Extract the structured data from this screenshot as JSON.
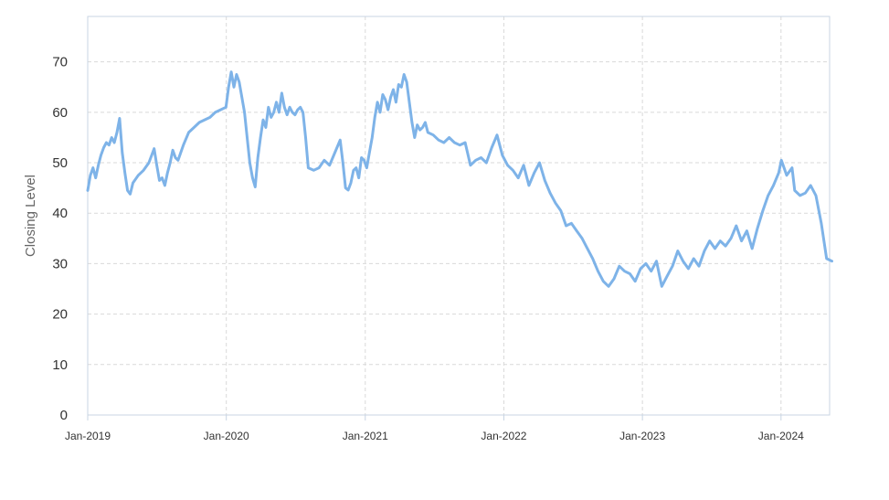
{
  "chart_data": {
    "type": "line",
    "title": "",
    "xlabel": "",
    "ylabel": "Closing Level",
    "ylim": [
      0,
      79
    ],
    "xlim": [
      "2019-01",
      "2024-05"
    ],
    "grid": true,
    "grid_style": "dashed",
    "legend": "none",
    "y_ticks": [
      0,
      10,
      20,
      30,
      40,
      50,
      60,
      70
    ],
    "x_ticks": [
      "Jan-2019",
      "Jan-2020",
      "Jan-2021",
      "Jan-2022",
      "Jan-2023",
      "Jan-2024"
    ],
    "colors": {
      "line": "#7eb3e8",
      "grid": "#d9d9d9",
      "frame": "#c8d4e3",
      "text": "#333333"
    },
    "series": [
      {
        "points": [
          [
            "2019-01-01",
            44.5
          ],
          [
            "2019-01-08",
            47.5
          ],
          [
            "2019-01-15",
            49
          ],
          [
            "2019-01-22",
            47
          ],
          [
            "2019-01-29",
            49.5
          ],
          [
            "2019-02-05",
            51.5
          ],
          [
            "2019-02-12",
            53
          ],
          [
            "2019-02-19",
            54
          ],
          [
            "2019-02-26",
            53.5
          ],
          [
            "2019-03-05",
            55
          ],
          [
            "2019-03-12",
            54
          ],
          [
            "2019-03-19",
            56
          ],
          [
            "2019-03-26",
            58.8
          ],
          [
            "2019-04-02",
            52
          ],
          [
            "2019-04-09",
            48
          ],
          [
            "2019-04-16",
            44.5
          ],
          [
            "2019-04-23",
            43.8
          ],
          [
            "2019-04-30",
            46
          ],
          [
            "2019-05-14",
            47.5
          ],
          [
            "2019-05-28",
            48.5
          ],
          [
            "2019-06-11",
            50
          ],
          [
            "2019-06-25",
            52.8
          ],
          [
            "2019-07-02",
            49.5
          ],
          [
            "2019-07-09",
            46.5
          ],
          [
            "2019-07-16",
            47
          ],
          [
            "2019-07-23",
            45.5
          ],
          [
            "2019-07-30",
            48
          ],
          [
            "2019-08-06",
            50
          ],
          [
            "2019-08-13",
            52.5
          ],
          [
            "2019-08-20",
            51
          ],
          [
            "2019-08-27",
            50.5
          ],
          [
            "2019-09-03",
            52
          ],
          [
            "2019-09-10",
            53.5
          ],
          [
            "2019-09-24",
            56
          ],
          [
            "2019-10-08",
            57
          ],
          [
            "2019-10-22",
            58
          ],
          [
            "2019-11-05",
            58.5
          ],
          [
            "2019-11-19",
            59
          ],
          [
            "2019-12-03",
            60
          ],
          [
            "2019-12-17",
            60.5
          ],
          [
            "2019-12-31",
            61
          ],
          [
            "2020-01-07",
            65
          ],
          [
            "2020-01-14",
            68
          ],
          [
            "2020-01-21",
            65
          ],
          [
            "2020-01-28",
            67.5
          ],
          [
            "2020-02-04",
            66
          ],
          [
            "2020-02-11",
            63
          ],
          [
            "2020-02-18",
            60
          ],
          [
            "2020-02-25",
            55
          ],
          [
            "2020-03-03",
            50
          ],
          [
            "2020-03-10",
            47
          ],
          [
            "2020-03-17",
            45.2
          ],
          [
            "2020-03-24",
            51
          ],
          [
            "2020-03-31",
            55
          ],
          [
            "2020-04-07",
            58.5
          ],
          [
            "2020-04-14",
            57
          ],
          [
            "2020-04-21",
            61
          ],
          [
            "2020-04-28",
            59
          ],
          [
            "2020-05-05",
            60
          ],
          [
            "2020-05-12",
            62
          ],
          [
            "2020-05-19",
            60
          ],
          [
            "2020-05-26",
            63.8
          ],
          [
            "2020-06-02",
            61
          ],
          [
            "2020-06-09",
            59.5
          ],
          [
            "2020-06-16",
            61
          ],
          [
            "2020-06-23",
            60
          ],
          [
            "2020-06-30",
            59.5
          ],
          [
            "2020-07-07",
            60.5
          ],
          [
            "2020-07-14",
            61
          ],
          [
            "2020-07-21",
            60
          ],
          [
            "2020-07-28",
            55
          ],
          [
            "2020-08-04",
            49
          ],
          [
            "2020-08-18",
            48.5
          ],
          [
            "2020-09-01",
            49
          ],
          [
            "2020-09-15",
            50.5
          ],
          [
            "2020-09-29",
            49.5
          ],
          [
            "2020-10-13",
            52
          ],
          [
            "2020-10-27",
            54.5
          ],
          [
            "2020-11-03",
            50
          ],
          [
            "2020-11-10",
            45
          ],
          [
            "2020-11-17",
            44.6
          ],
          [
            "2020-11-24",
            46
          ],
          [
            "2020-12-01",
            48.5
          ],
          [
            "2020-12-08",
            49
          ],
          [
            "2020-12-15",
            47
          ],
          [
            "2020-12-22",
            51
          ],
          [
            "2020-12-29",
            50.5
          ],
          [
            "2021-01-05",
            49
          ],
          [
            "2021-01-12",
            52
          ],
          [
            "2021-01-19",
            55
          ],
          [
            "2021-01-26",
            59
          ],
          [
            "2021-02-02",
            62
          ],
          [
            "2021-02-09",
            60
          ],
          [
            "2021-02-16",
            63.5
          ],
          [
            "2021-02-23",
            62.5
          ],
          [
            "2021-03-02",
            60.5
          ],
          [
            "2021-03-09",
            63
          ],
          [
            "2021-03-16",
            64.5
          ],
          [
            "2021-03-23",
            62
          ],
          [
            "2021-03-30",
            65.5
          ],
          [
            "2021-04-06",
            65
          ],
          [
            "2021-04-13",
            67.5
          ],
          [
            "2021-04-20",
            66
          ],
          [
            "2021-04-27",
            62
          ],
          [
            "2021-05-04",
            58
          ],
          [
            "2021-05-11",
            55
          ],
          [
            "2021-05-18",
            57.5
          ],
          [
            "2021-05-25",
            56.5
          ],
          [
            "2021-06-01",
            57
          ],
          [
            "2021-06-08",
            58
          ],
          [
            "2021-06-15",
            56
          ],
          [
            "2021-06-29",
            55.5
          ],
          [
            "2021-07-13",
            54.5
          ],
          [
            "2021-07-27",
            54
          ],
          [
            "2021-08-10",
            55
          ],
          [
            "2021-08-24",
            54
          ],
          [
            "2021-09-07",
            53.5
          ],
          [
            "2021-09-21",
            54
          ],
          [
            "2021-10-05",
            49.5
          ],
          [
            "2021-10-19",
            50.5
          ],
          [
            "2021-11-02",
            51
          ],
          [
            "2021-11-16",
            50
          ],
          [
            "2021-11-30",
            53
          ],
          [
            "2021-12-14",
            55.5
          ],
          [
            "2021-12-28",
            51.5
          ],
          [
            "2022-01-11",
            49.5
          ],
          [
            "2022-01-25",
            48.5
          ],
          [
            "2022-02-08",
            47
          ],
          [
            "2022-02-22",
            49.5
          ],
          [
            "2022-03-08",
            45.5
          ],
          [
            "2022-03-22",
            48
          ],
          [
            "2022-04-05",
            50
          ],
          [
            "2022-04-19",
            46.5
          ],
          [
            "2022-05-03",
            44
          ],
          [
            "2022-05-17",
            42
          ],
          [
            "2022-05-31",
            40.5
          ],
          [
            "2022-06-14",
            37.5
          ],
          [
            "2022-06-28",
            38
          ],
          [
            "2022-07-12",
            36.5
          ],
          [
            "2022-07-26",
            35
          ],
          [
            "2022-08-09",
            33
          ],
          [
            "2022-08-23",
            31
          ],
          [
            "2022-09-06",
            28.5
          ],
          [
            "2022-09-20",
            26.5
          ],
          [
            "2022-10-04",
            25.5
          ],
          [
            "2022-10-18",
            27
          ],
          [
            "2022-11-01",
            29.5
          ],
          [
            "2022-11-15",
            28.5
          ],
          [
            "2022-11-29",
            28
          ],
          [
            "2022-12-13",
            26.5
          ],
          [
            "2022-12-27",
            29
          ],
          [
            "2023-01-10",
            30
          ],
          [
            "2023-01-24",
            28.5
          ],
          [
            "2023-02-07",
            30.5
          ],
          [
            "2023-02-21",
            25.5
          ],
          [
            "2023-03-07",
            27.5
          ],
          [
            "2023-03-21",
            29.5
          ],
          [
            "2023-04-04",
            32.5
          ],
          [
            "2023-04-18",
            30.5
          ],
          [
            "2023-05-02",
            29
          ],
          [
            "2023-05-16",
            31
          ],
          [
            "2023-05-30",
            29.5
          ],
          [
            "2023-06-13",
            32.5
          ],
          [
            "2023-06-27",
            34.5
          ],
          [
            "2023-07-11",
            33
          ],
          [
            "2023-07-25",
            34.5
          ],
          [
            "2023-08-08",
            33.5
          ],
          [
            "2023-08-22",
            35
          ],
          [
            "2023-09-05",
            37.5
          ],
          [
            "2023-09-19",
            34.5
          ],
          [
            "2023-10-03",
            36.5
          ],
          [
            "2023-10-17",
            33
          ],
          [
            "2023-10-31",
            37
          ],
          [
            "2023-11-14",
            40.5
          ],
          [
            "2023-11-28",
            43.5
          ],
          [
            "2023-12-12",
            45.5
          ],
          [
            "2023-12-26",
            48
          ],
          [
            "2024-01-02",
            50.5
          ],
          [
            "2024-01-16",
            47.5
          ],
          [
            "2024-01-30",
            49
          ],
          [
            "2024-02-06",
            44.5
          ],
          [
            "2024-02-20",
            43.5
          ],
          [
            "2024-03-05",
            44
          ],
          [
            "2024-03-19",
            45.5
          ],
          [
            "2024-04-02",
            43.5
          ],
          [
            "2024-04-16",
            38
          ],
          [
            "2024-04-30",
            31
          ],
          [
            "2024-05-14",
            30.5
          ]
        ]
      }
    ]
  }
}
